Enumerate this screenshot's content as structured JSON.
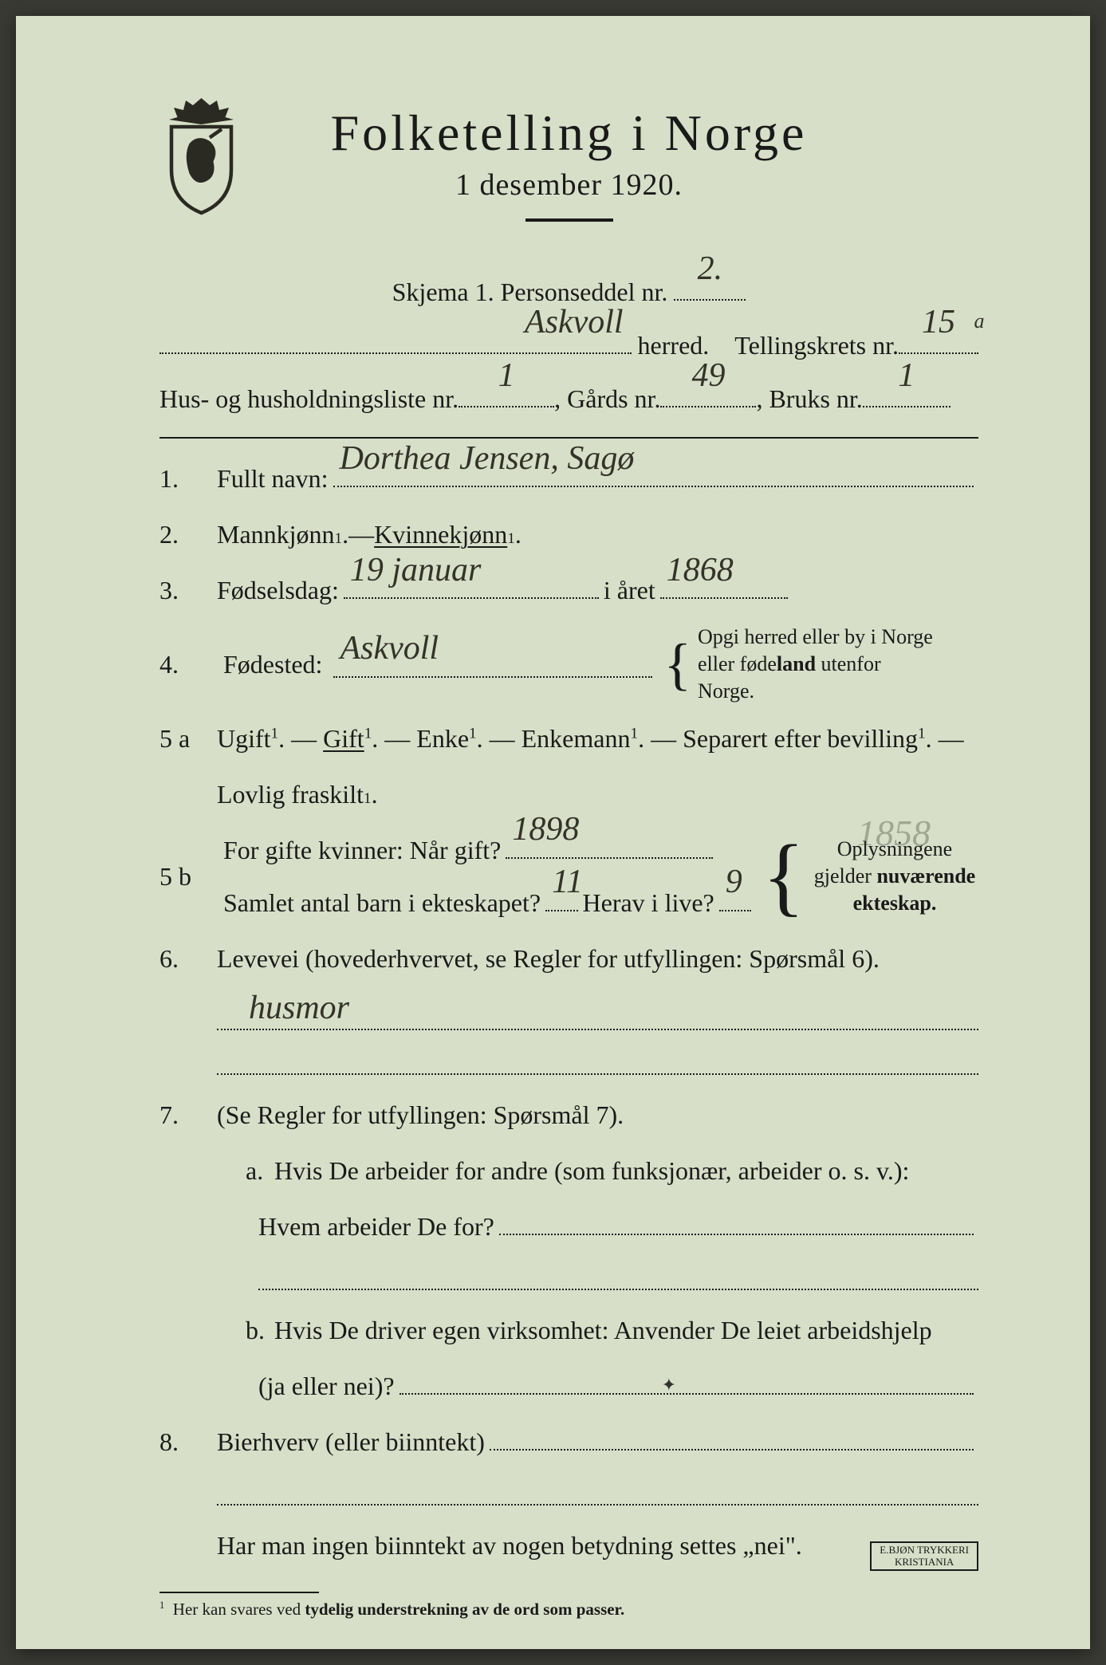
{
  "title": "Folketelling i Norge",
  "subtitle": "1 desember 1920.",
  "schema_line_prefix": "Skjema 1.   Personseddel nr.",
  "personseddel_nr": "2.",
  "herred_label": "herred.",
  "herred_value": "Askvoll",
  "tellingskrets_label": "Tellingskrets nr.",
  "tellingskrets_value": "15",
  "tellingskrets_sup": "a",
  "husliste_label": "Hus- og husholdningsliste nr.",
  "husliste_value": "1",
  "gards_label": ", Gårds nr.",
  "gards_value": "49",
  "bruks_label": ", Bruks nr.",
  "bruks_value": "1",
  "q1": {
    "num": "1.",
    "label": "Fullt navn:",
    "value": "Dorthea Jensen, Sagø"
  },
  "q2": {
    "num": "2.",
    "text_a": "Mannkjønn",
    "dash": " — ",
    "text_b": "Kvinnekjønn",
    "period": "."
  },
  "q3": {
    "num": "3.",
    "label": "Fødselsdag:",
    "value_day": "19 januar",
    "mid": " i året",
    "value_year": "1868"
  },
  "q4": {
    "num": "4.",
    "label": "Fødested:",
    "value": "Askvoll",
    "note_a": "Opgi herred eller by i Norge",
    "note_b": "eller føde",
    "note_b_bold": "land",
    "note_b_tail": " utenfor Norge."
  },
  "q5a": {
    "num": "5 a",
    "options": [
      "Ugift",
      "Gift",
      "Enke",
      "Enkemann",
      "Separert efter bevilling"
    ],
    "tail": "Lovlig fraskilt",
    "selected_index": 1
  },
  "q5b": {
    "num": "5 b",
    "line1_a": "For gifte kvinner:  Når gift?",
    "value_year": "1898",
    "line2_a": "Samlet antal barn i ekteskapet?",
    "value_children": "11",
    "line2_b": "Herav i live?",
    "value_alive": "9",
    "note_a": "Oplysningene",
    "note_b": "gjelder ",
    "note_b_bold": "nuværende",
    "note_c_bold": "ekteskap.",
    "pencil_note": "1858"
  },
  "q6": {
    "num": "6.",
    "label": "Levevei (hovederhvervet, se Regler for utfyllingen:  Spørsmål 6).",
    "value": "husmor"
  },
  "q7": {
    "num": "7.",
    "label": "(Se Regler for utfyllingen:  Spørsmål 7).",
    "a_num": "a.",
    "a_text": "Hvis De arbeider for andre (som funksjonær, arbeider o. s. v.):",
    "a_q": "Hvem arbeider De for?",
    "b_num": "b.",
    "b_text": "Hvis De driver egen virksomhet:  Anvender De leiet arbeidshjelp",
    "b_q": "(ja eller nei)?"
  },
  "q8": {
    "num": "8.",
    "label": "Bierhverv (eller biinntekt)"
  },
  "closing": "Har man ingen biinntekt av nogen betydning settes „nei\".",
  "footnote_num": "1",
  "footnote": "Her kan svares ved ",
  "footnote_bold": "tydelig understrekning av de ord som passer.",
  "stamp_a": "E.BJØN TRYKKERI",
  "stamp_b": "KRISTIANIA",
  "colors": {
    "paper": "#d8dfc8",
    "ink": "#1a1a1a",
    "pencil": "#333329",
    "background": "#3a3a35"
  }
}
